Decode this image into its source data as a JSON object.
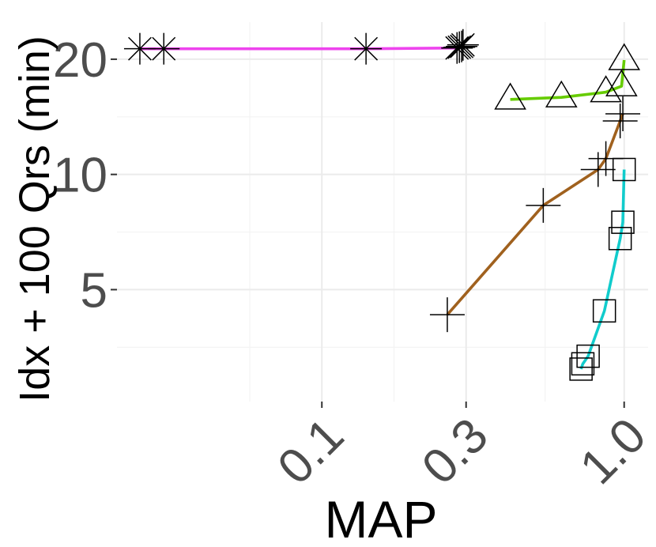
{
  "chart_data": {
    "type": "line",
    "title": "",
    "xlabel": "MAP",
    "ylabel": "Idx + 100 Qrs (min)",
    "x_scale": "log10",
    "y_scale": "log10",
    "xlim": [
      0.021,
      1.2
    ],
    "ylim": [
      2.55,
      25
    ],
    "x_ticks": [
      0.1,
      0.3,
      1.0
    ],
    "x_tick_labels": [
      "0.1",
      "0.3",
      "1.0"
    ],
    "y_ticks": [
      5,
      10,
      20
    ],
    "y_tick_labels": [
      "5",
      "10",
      "20"
    ],
    "grid": true,
    "legend": "none",
    "series": [
      {
        "color": "#ee44ee",
        "marker": "asterisk",
        "points": [
          [
            0.025,
            21.3
          ],
          [
            0.03,
            21.3
          ],
          [
            0.14,
            21.3
          ],
          [
            0.28,
            21.4
          ],
          [
            0.285,
            21.5
          ],
          [
            0.29,
            21.6
          ],
          [
            0.293,
            21.8
          ]
        ]
      },
      {
        "color": "#66cc00",
        "marker": "triangle",
        "points": [
          [
            0.42,
            15.7
          ],
          [
            0.62,
            15.9
          ],
          [
            0.87,
            16.4
          ],
          [
            0.98,
            17.0
          ],
          [
            1.0,
            19.9
          ]
        ]
      },
      {
        "color": "#a0611e",
        "marker": "plus",
        "points": [
          [
            0.26,
            4.3
          ],
          [
            0.54,
            8.3
          ],
          [
            0.82,
            10.3
          ],
          [
            0.87,
            11.0
          ],
          [
            0.97,
            13.8
          ],
          [
            0.99,
            14.4
          ]
        ]
      },
      {
        "color": "#11cccc",
        "marker": "square",
        "points": [
          [
            0.72,
            3.1
          ],
          [
            0.73,
            3.2
          ],
          [
            0.76,
            3.35
          ],
          [
            0.86,
            4.4
          ],
          [
            0.97,
            6.8
          ],
          [
            0.99,
            7.5
          ],
          [
            1.0,
            10.3
          ]
        ]
      }
    ]
  }
}
